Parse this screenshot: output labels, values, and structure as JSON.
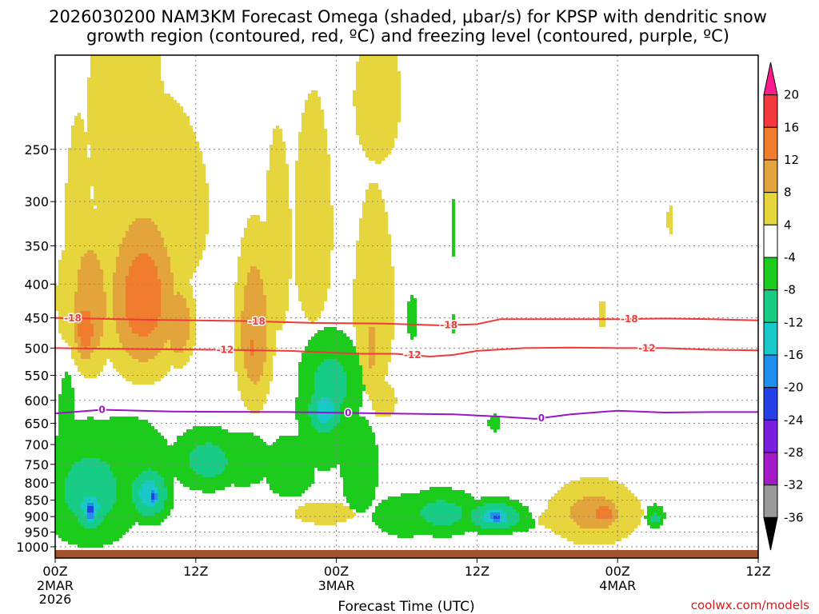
{
  "chart_data": {
    "type": "heatmap",
    "title_line1": "2026030200 NAM3KM Forecast Omega (shaded, μbar/s) for KPSP with dendritic snow",
    "title_line2": "growth region (contoured, red, ºC) and freezing level (contoured, purple, ºC)",
    "xlabel": "Forecast Time (UTC)",
    "ylabel": "",
    "credit": "coolwx.com/models",
    "x_hours_range": [
      0,
      60
    ],
    "pressure_range_hpa": [
      1040,
      180
    ],
    "x_ticks": [
      {
        "hour": 0,
        "label": "00Z",
        "sub1": "2MAR",
        "sub2": "2026"
      },
      {
        "hour": 12,
        "label": "12Z",
        "sub1": "",
        "sub2": ""
      },
      {
        "hour": 24,
        "label": "00Z",
        "sub1": "3MAR",
        "sub2": ""
      },
      {
        "hour": 36,
        "label": "12Z",
        "sub1": "",
        "sub2": ""
      },
      {
        "hour": 48,
        "label": "00Z",
        "sub1": "4MAR",
        "sub2": ""
      },
      {
        "hour": 60,
        "label": "12Z",
        "sub1": "",
        "sub2": ""
      }
    ],
    "y_ticks": [
      250,
      300,
      350,
      400,
      450,
      500,
      550,
      600,
      650,
      700,
      750,
      800,
      850,
      900,
      950,
      1000
    ],
    "colorbar": {
      "labels": [
        "20",
        "16",
        "12",
        "8",
        "4",
        "-4",
        "-8",
        "-12",
        "-16",
        "-20",
        "-24",
        "-28",
        "-32",
        "-36"
      ],
      "colors": [
        "#ff1b8d",
        "#f3393d",
        "#f07d2d",
        "#e3a43c",
        "#e6d53c",
        "#ffffff",
        "#1ccc1c",
        "#17cc85",
        "#19c8c8",
        "#1e8ff0",
        "#2640e8",
        "#7a1ee0",
        "#a51ac8",
        "#9a9a9a",
        "#000000"
      ]
    },
    "omega_blobs": [
      {
        "h": 6,
        "p": 220,
        "rh": 5.0,
        "rp": 230,
        "v": 6
      },
      {
        "h": 2,
        "p": 360,
        "rh": 2.0,
        "rp": 220,
        "v": 6
      },
      {
        "h": 9,
        "p": 310,
        "rh": 5.5,
        "rp": 140,
        "v": 7
      },
      {
        "h": 1,
        "p": 420,
        "rh": 1.4,
        "rp": 110,
        "v": 6
      },
      {
        "h": 3,
        "p": 430,
        "rh": 2.0,
        "rp": 120,
        "v": 12
      },
      {
        "h": 7.5,
        "p": 420,
        "rh": 3.3,
        "rp": 130,
        "v": 15
      },
      {
        "h": 2.6,
        "p": 470,
        "rh": 1.1,
        "rp": 60,
        "v": 16
      },
      {
        "h": 10.5,
        "p": 460,
        "rh": 1.5,
        "rp": 75,
        "v": 12
      },
      {
        "h": 17,
        "p": 470,
        "rh": 1.7,
        "rp": 150,
        "v": 12
      },
      {
        "h": 16.8,
        "p": 500,
        "rh": 0.5,
        "rp": 40,
        "v": 14
      },
      {
        "h": 19,
        "p": 350,
        "rh": 1.8,
        "rp": 190,
        "v": 6
      },
      {
        "h": 22,
        "p": 330,
        "rh": 2.6,
        "rp": 200,
        "v": 6
      },
      {
        "h": 27.2,
        "p": 430,
        "rh": 2.3,
        "rp": 200,
        "v": 7
      },
      {
        "h": 27,
        "p": 500,
        "rh": 1.0,
        "rp": 110,
        "v": 9
      },
      {
        "h": 28,
        "p": 600,
        "rh": 2.3,
        "rp": 80,
        "v": 5
      },
      {
        "h": 27.5,
        "p": 210,
        "rh": 4.2,
        "rp": 110,
        "v": 5
      },
      {
        "h": 52.5,
        "p": 320,
        "rh": 0.55,
        "rp": 35,
        "v": 5
      },
      {
        "h": 46.7,
        "p": 445,
        "rh": 0.7,
        "rp": 45,
        "v": 5
      },
      {
        "h": 23,
        "p": 890,
        "rh": 4.0,
        "rp": 55,
        "v": 6
      },
      {
        "h": 46,
        "p": 890,
        "rh": 4.3,
        "rp": 110,
        "v": 10
      },
      {
        "h": 46.8,
        "p": 890,
        "rh": 1.3,
        "rp": 40,
        "v": 16
      },
      {
        "h": 42,
        "p": 910,
        "rh": 1.6,
        "rp": 50,
        "v": 5
      },
      {
        "h": 3,
        "p": 820,
        "rh": 4.8,
        "rp": 190,
        "v": -10
      },
      {
        "h": 3,
        "p": 870,
        "rh": 1.8,
        "rp": 90,
        "v": -14
      },
      {
        "h": 3,
        "p": 880,
        "rh": 0.55,
        "rp": 45,
        "v": -22
      },
      {
        "h": 8,
        "p": 830,
        "rh": 2.0,
        "rp": 90,
        "v": -14
      },
      {
        "h": 8.4,
        "p": 840,
        "rh": 0.55,
        "rp": 30,
        "v": -22
      },
      {
        "h": 13,
        "p": 740,
        "rh": 3.5,
        "rp": 90,
        "v": -10
      },
      {
        "h": 1,
        "p": 660,
        "rh": 0.9,
        "rp": 140,
        "v": -8
      },
      {
        "h": 6,
        "p": 760,
        "rh": 6.5,
        "rp": 200,
        "v": -6
      },
      {
        "h": 16,
        "p": 740,
        "rh": 4.0,
        "rp": 110,
        "v": -6
      },
      {
        "h": 20,
        "p": 760,
        "rh": 3.5,
        "rp": 130,
        "v": -6
      },
      {
        "h": 23,
        "p": 620,
        "rh": 3.8,
        "rp": 230,
        "v": -6
      },
      {
        "h": 23.5,
        "p": 570,
        "rh": 3.0,
        "rp": 110,
        "v": -10
      },
      {
        "h": 23,
        "p": 620,
        "rh": 1.8,
        "rp": 70,
        "v": -14
      },
      {
        "h": 26,
        "p": 760,
        "rh": 2.5,
        "rp": 200,
        "v": -6
      },
      {
        "h": 30,
        "p": 900,
        "rh": 3.5,
        "rp": 80,
        "v": -8
      },
      {
        "h": 33,
        "p": 890,
        "rh": 3.8,
        "rp": 80,
        "v": -10
      },
      {
        "h": 37.5,
        "p": 900,
        "rh": 2.8,
        "rp": 55,
        "v": -14
      },
      {
        "h": 37.6,
        "p": 900,
        "rh": 0.8,
        "rp": 25,
        "v": -22
      },
      {
        "h": 40,
        "p": 920,
        "rh": 1.5,
        "rp": 40,
        "v": -6
      },
      {
        "h": 30.5,
        "p": 450,
        "rh": 0.7,
        "rp": 55,
        "v": -6
      },
      {
        "h": 34,
        "p": 330,
        "rh": 0.35,
        "rp": 50,
        "v": -6
      },
      {
        "h": 34,
        "p": 460,
        "rh": 0.25,
        "rp": 25,
        "v": -6
      },
      {
        "h": 37.5,
        "p": 650,
        "rh": 0.9,
        "rp": 30,
        "v": -6
      },
      {
        "h": 51.2,
        "p": 900,
        "rh": 1.0,
        "rp": 45,
        "v": -8
      },
      {
        "h": 51.2,
        "p": 905,
        "rh": 0.5,
        "rp": 25,
        "v": -12
      }
    ],
    "contours": [
      {
        "name": "dgz-minus18",
        "color": "#f03a3a",
        "labels": [
          "-18",
          "-18",
          "-18",
          "-18"
        ],
        "label_hours": [
          1.5,
          17.2,
          33.6,
          49.0
        ],
        "points": [
          [
            0,
            450
          ],
          [
            8,
            453
          ],
          [
            16,
            455
          ],
          [
            22,
            458
          ],
          [
            28,
            459
          ],
          [
            33,
            462
          ],
          [
            36,
            460
          ],
          [
            38,
            452
          ],
          [
            41,
            452
          ],
          [
            48,
            452
          ],
          [
            52,
            451
          ],
          [
            56,
            452
          ],
          [
            60,
            454
          ]
        ]
      },
      {
        "name": "dgz-minus12",
        "color": "#f03a3a",
        "labels": [
          "-12",
          "-12",
          "-12"
        ],
        "label_hours": [
          14.5,
          30.5,
          50.5
        ],
        "points": [
          [
            0,
            500
          ],
          [
            8,
            502
          ],
          [
            14,
            503
          ],
          [
            20,
            505
          ],
          [
            26,
            510
          ],
          [
            29,
            510
          ],
          [
            32,
            515
          ],
          [
            34,
            512
          ],
          [
            36,
            505
          ],
          [
            40,
            500
          ],
          [
            44,
            499
          ],
          [
            48,
            500
          ],
          [
            52,
            500
          ],
          [
            56,
            503
          ],
          [
            60,
            504
          ]
        ]
      },
      {
        "name": "freezing-level",
        "color": "#9a14c8",
        "labels": [
          "0",
          "0",
          "0"
        ],
        "label_hours": [
          4.0,
          25.0,
          41.5
        ],
        "points": [
          [
            0,
            628
          ],
          [
            4,
            620
          ],
          [
            10,
            624
          ],
          [
            20,
            625
          ],
          [
            28,
            628
          ],
          [
            34,
            630
          ],
          [
            38,
            635
          ],
          [
            41,
            640
          ],
          [
            44,
            630
          ],
          [
            48,
            622
          ],
          [
            52,
            626
          ],
          [
            56,
            625
          ],
          [
            60,
            625
          ]
        ]
      }
    ],
    "terrain_color": "#a0522d"
  }
}
